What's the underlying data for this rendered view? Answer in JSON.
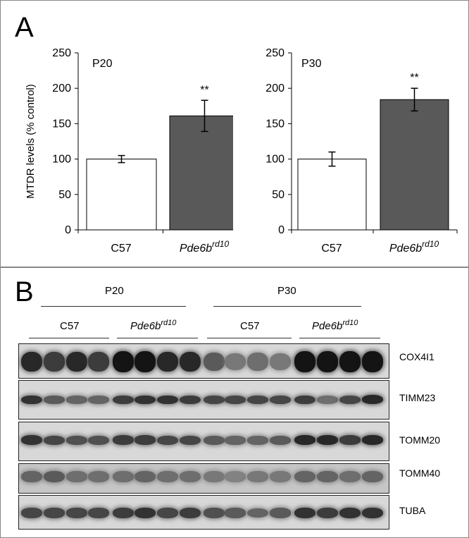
{
  "panel_a": {
    "letter": "A"
  },
  "panel_b": {
    "letter": "B"
  },
  "chart_data": [
    {
      "type": "bar",
      "title": "P20",
      "ylabel": "MTDR levels (% control)",
      "ylim": [
        0,
        250
      ],
      "yticks": [
        "0",
        "50",
        "100",
        "150",
        "200",
        "250"
      ],
      "categories": [
        "C57",
        "Pde6b^rd10"
      ],
      "category_labels": [
        {
          "main": "C57",
          "sup": ""
        },
        {
          "main": "Pde6b",
          "sup": "rd10"
        }
      ],
      "values": [
        100,
        161
      ],
      "errors": [
        5,
        22
      ],
      "bar_colors": [
        "#ffffff",
        "#595959"
      ],
      "annotations": [
        "",
        "**"
      ]
    },
    {
      "type": "bar",
      "title": "P30",
      "ylabel": "",
      "ylim": [
        0,
        250
      ],
      "yticks": [
        "0",
        "50",
        "100",
        "150",
        "200",
        "250"
      ],
      "categories": [
        "C57",
        "Pde6b^rd10"
      ],
      "category_labels": [
        {
          "main": "C57",
          "sup": ""
        },
        {
          "main": "Pde6b",
          "sup": "rd10"
        }
      ],
      "values": [
        100,
        184
      ],
      "errors": [
        10,
        16
      ],
      "bar_colors": [
        "#ffffff",
        "#595959"
      ],
      "annotations": [
        "",
        "**"
      ]
    }
  ],
  "blot": {
    "groups": [
      "P20",
      "P30"
    ],
    "subgroups": [
      {
        "main": "C57",
        "sup": ""
      },
      {
        "main": "Pde6b",
        "sup": "rd10"
      },
      {
        "main": "C57",
        "sup": ""
      },
      {
        "main": "Pde6b",
        "sup": "rd10"
      }
    ],
    "rows": [
      {
        "label": "COX4I1",
        "intensity": [
          0.85,
          0.75,
          0.85,
          0.75,
          0.95,
          0.95,
          0.85,
          0.85,
          0.6,
          0.45,
          0.5,
          0.45,
          0.95,
          0.95,
          0.95,
          0.95
        ]
      },
      {
        "label": "TIMM23",
        "intensity": [
          0.8,
          0.6,
          0.55,
          0.55,
          0.75,
          0.8,
          0.8,
          0.75,
          0.7,
          0.7,
          0.7,
          0.7,
          0.75,
          0.5,
          0.7,
          0.85
        ]
      },
      {
        "label": "TOMM20",
        "intensity": [
          0.8,
          0.7,
          0.65,
          0.65,
          0.75,
          0.75,
          0.7,
          0.7,
          0.6,
          0.55,
          0.55,
          0.6,
          0.85,
          0.85,
          0.75,
          0.85
        ]
      },
      {
        "label": "TOMM40",
        "intensity": [
          0.55,
          0.6,
          0.5,
          0.5,
          0.5,
          0.55,
          0.5,
          0.5,
          0.45,
          0.4,
          0.45,
          0.45,
          0.55,
          0.55,
          0.5,
          0.55
        ]
      },
      {
        "label": "TUBA",
        "intensity": [
          0.7,
          0.7,
          0.7,
          0.7,
          0.75,
          0.8,
          0.7,
          0.75,
          0.65,
          0.6,
          0.55,
          0.6,
          0.8,
          0.75,
          0.8,
          0.8
        ]
      }
    ]
  }
}
